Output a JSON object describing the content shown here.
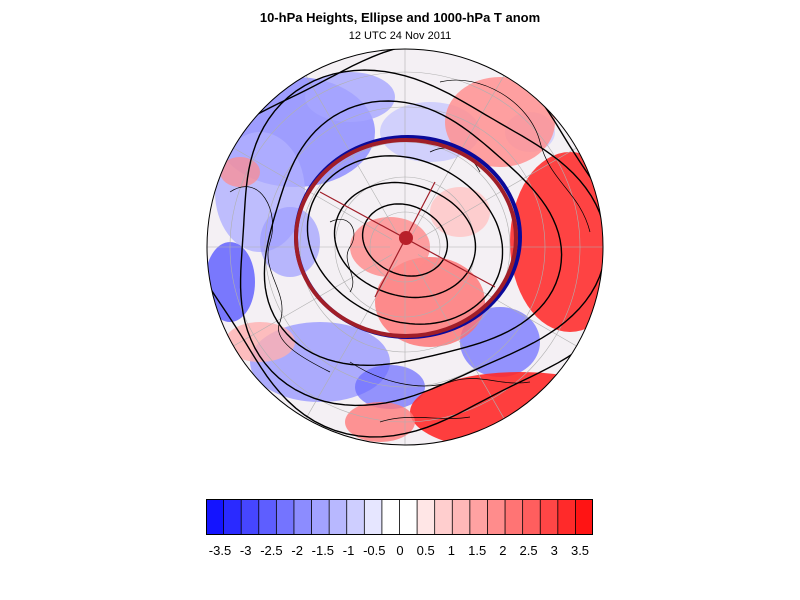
{
  "header": {
    "title": "10-hPa Heights, Ellipse and 1000-hPa T anom",
    "subtitle": "12 UTC 24 Nov 2011"
  },
  "map": {
    "projection": "north-polar-stereographic",
    "overlays": [
      "10-hPa height contours",
      "ellipse",
      "1000-hPa T anomaly shading"
    ],
    "colors": {
      "ellipse": "#a01e28",
      "ellipse_edge_blue": "#0a0a9a",
      "center_dot": "#b8202a",
      "contour": "#000000",
      "gridline": "#b0b0b0"
    }
  },
  "colorbar": {
    "labels": [
      "-3.5",
      "-3",
      "-2.5",
      "-2",
      "-1.5",
      "-1",
      "-0.5",
      "0",
      "0.5",
      "1",
      "1.5",
      "2",
      "2.5",
      "3",
      "3.5"
    ],
    "colors": [
      "#1414ff",
      "#2a2aff",
      "#4646ff",
      "#5e5eff",
      "#7474ff",
      "#8c8cff",
      "#a2a2ff",
      "#b8b8ff",
      "#ceceff",
      "#e6e6ff",
      "#ffffff",
      "#ffffff",
      "#ffe6e6",
      "#ffcece",
      "#ffb8b8",
      "#ffa2a2",
      "#ff8c8c",
      "#ff7474",
      "#ff5e5e",
      "#ff4646",
      "#ff2a2a",
      "#ff1414"
    ]
  }
}
